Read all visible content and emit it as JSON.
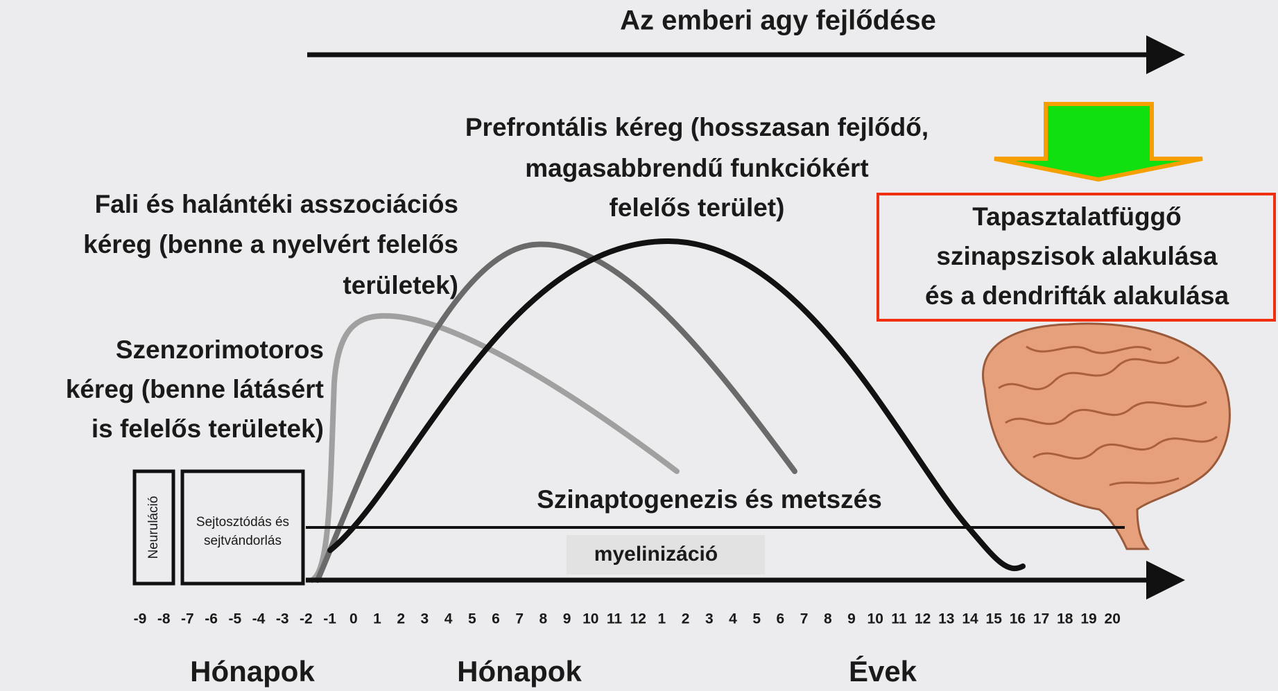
{
  "title": "Az emberi agy fejlődése",
  "prefrontal_label": [
    "Prefrontális kéreg (hosszasan fejlődő,",
    "magasabbrendű funkciókért",
    "felelős terület)"
  ],
  "parietal_label": [
    "Fali és halántéki asszociációs",
    "kéreg (benne a nyelvért felelős",
    "területek)"
  ],
  "sensorimotor_label": [
    "Szenzorimotoros",
    "kéreg (benne látásért",
    "is felelős területek)"
  ],
  "experience_box": [
    "Tapasztalatfüggő",
    "szinapszisok alakulása",
    "és a dendrifták alakulása"
  ],
  "stage_neurulation": "Neuruláció",
  "stage_division": [
    "Sejtosztódás és",
    "sejtvándorlás"
  ],
  "synaptogenesis": "Szinaptogenezis és metszés",
  "myelination": "myelinizáció",
  "timeline_ticks": [
    "-9",
    "-8",
    "-7",
    "-6",
    "-5",
    "-4",
    "-3",
    "-2",
    "-1",
    "0",
    "1",
    "2",
    "3",
    "4",
    "5",
    "6",
    "7",
    "8",
    "9",
    "10",
    "11",
    "12",
    "1",
    "2",
    "3",
    "4",
    "5",
    "6",
    "7",
    "8",
    "9",
    "10",
    "11",
    "12",
    "13",
    "14",
    "15",
    "16",
    "17",
    "18",
    "19",
    "20"
  ],
  "units": [
    "Hónapok",
    "Hónapok",
    "Évek"
  ]
}
